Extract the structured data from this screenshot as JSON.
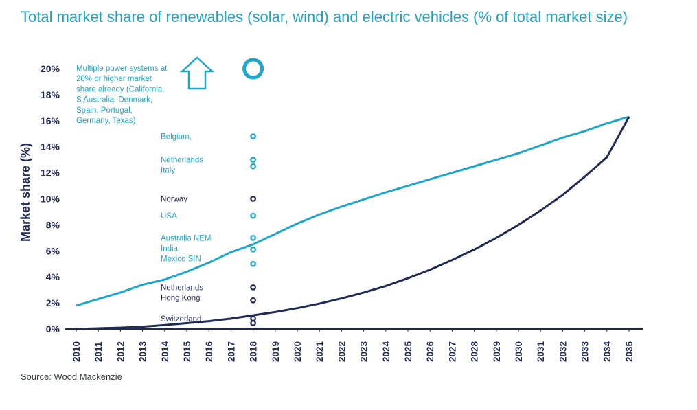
{
  "chart_data": {
    "type": "line",
    "title": "Total market share of renewables (solar, wind) and electric vehicles (% of total market size)",
    "ylabel": "Market share (%)",
    "xlabel": "",
    "x": [
      2010,
      2011,
      2012,
      2013,
      2014,
      2015,
      2016,
      2017,
      2018,
      2019,
      2020,
      2021,
      2022,
      2023,
      2024,
      2025,
      2026,
      2027,
      2028,
      2029,
      2030,
      2031,
      2032,
      2033,
      2034,
      2035
    ],
    "ylim": [
      0,
      20
    ],
    "yticks": [
      "0%",
      "2%",
      "4%",
      "6%",
      "8%",
      "10%",
      "12%",
      "14%",
      "16%",
      "18%",
      "20%"
    ],
    "series": [
      {
        "color": "#1ea6c9",
        "values": [
          1.8,
          2.3,
          2.8,
          3.4,
          3.8,
          4.4,
          5.1,
          5.9,
          6.5,
          7.3,
          8.1,
          8.8,
          9.4,
          9.95,
          10.5,
          11.0,
          11.5,
          12.0,
          12.5,
          13.0,
          13.5,
          14.1,
          14.7,
          15.2,
          15.8,
          16.3
        ]
      },
      {
        "color": "#1f2a55",
        "values": [
          0.0,
          0.05,
          0.1,
          0.18,
          0.3,
          0.45,
          0.6,
          0.8,
          1.05,
          1.3,
          1.6,
          1.95,
          2.35,
          2.8,
          3.3,
          3.9,
          4.55,
          5.3,
          6.1,
          7.0,
          8.0,
          9.1,
          10.3,
          11.7,
          13.2,
          16.3
        ]
      }
    ],
    "annotations": [
      {
        "text": "Multiple power systems at\n20% or higher market\nshare already (California,\nS Australia, Denmark,\nSpain, Portugal,\nGermany, Texas)",
        "color": "#1ea6c9",
        "type": "label"
      },
      {
        "text": "Belgium,",
        "color": "#1ea6c9",
        "y": 14.8
      },
      {
        "text": "Netherlands\nItaly",
        "color": "#1ea6c9",
        "y": 13.0,
        "y2": 12.5
      },
      {
        "text": "Norway",
        "color": "#1f2a55",
        "y": 10.0
      },
      {
        "text": "USA",
        "color": "#1ea6c9",
        "y": 8.7
      },
      {
        "text": "Australia NEM\nIndia\nMexico SIN",
        "color": "#1ea6c9",
        "y": 7.0,
        "y2": 6.1,
        "y3": 5.0
      },
      {
        "text": "Netherlands\nHong Kong",
        "color": "#1f2a55",
        "y": 3.2,
        "y2": 2.2
      },
      {
        "text": "Switzerland",
        "color": "#1f2a55",
        "y": 0.8,
        "y2": 0.45
      }
    ],
    "grid": false,
    "legend": "none"
  },
  "source": "Source: Wood Mackenzie"
}
